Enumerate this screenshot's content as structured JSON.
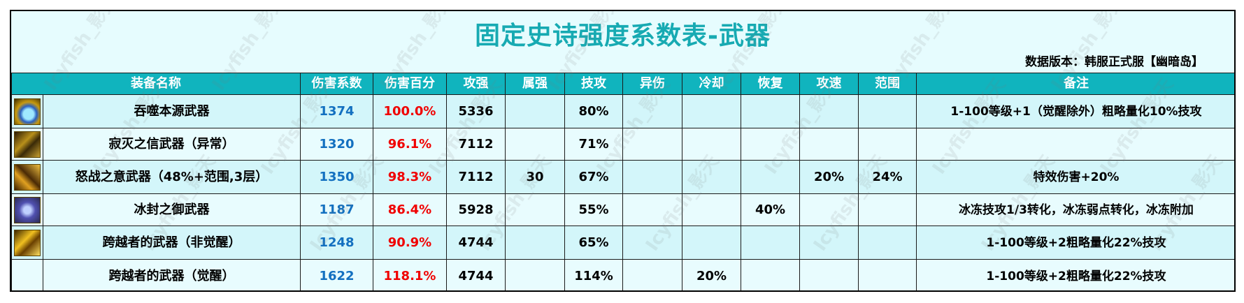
{
  "title": "固定史诗强度系数表-武器",
  "version": "数据版本：韩服正式服【幽暗岛】",
  "watermark": "Icyfish_影天",
  "colors": {
    "header_bg": "#10b4be",
    "title": "#17aab2",
    "coef": "#1370c0",
    "percent": "#f00000"
  },
  "headers": [
    "装备名称",
    "伤害系数",
    "伤害百分",
    "攻强",
    "属强",
    "技攻",
    "异伤",
    "冷却",
    "恢复",
    "攻速",
    "范围",
    "备注"
  ],
  "rows": [
    {
      "icon": "weapon-icon-devour",
      "name": "吞噬本源武器",
      "coef": "1374",
      "pct": "100.0%",
      "atk": "5336",
      "elem": "",
      "skill": "80%",
      "abn": "",
      "cd": "",
      "rec": "",
      "spd": "",
      "range": "",
      "note": "1-100等级+1（觉醒除外）粗略量化10%技攻"
    },
    {
      "icon": "weapon-icon-silence",
      "name": "寂灭之信武器（异常）",
      "coef": "1320",
      "pct": "96.1%",
      "atk": "7112",
      "elem": "",
      "skill": "71%",
      "abn": "",
      "cd": "",
      "rec": "",
      "spd": "",
      "range": "",
      "note": ""
    },
    {
      "icon": "weapon-icon-wrath",
      "name": "怒战之意武器（48%+范围,3层）",
      "coef": "1350",
      "pct": "98.3%",
      "atk": "7112",
      "elem": "30",
      "skill": "67%",
      "abn": "",
      "cd": "",
      "rec": "",
      "spd": "20%",
      "range": "24%",
      "note": "特效伤害+20%"
    },
    {
      "icon": "weapon-icon-frost",
      "name": "冰封之御武器",
      "coef": "1187",
      "pct": "86.4%",
      "atk": "5928",
      "elem": "",
      "skill": "55%",
      "abn": "",
      "cd": "",
      "rec": "40%",
      "spd": "",
      "range": "",
      "note": "冰冻技攻1/3转化，冰冻弱点转化，冰冻附加"
    },
    {
      "icon": "weapon-icon-transcend",
      "name": "跨越者的武器（非觉醒）",
      "coef": "1248",
      "pct": "90.9%",
      "atk": "4744",
      "elem": "",
      "skill": "65%",
      "abn": "",
      "cd": "",
      "rec": "",
      "spd": "",
      "range": "",
      "note": "1-100等级+2粗略量化22%技攻"
    },
    {
      "icon": "",
      "name": "跨越者的武器（觉醒）",
      "coef": "1622",
      "pct": "118.1%",
      "atk": "4744",
      "elem": "",
      "skill": "114%",
      "abn": "",
      "cd": "20%",
      "rec": "",
      "spd": "",
      "range": "",
      "note": "1-100等级+2粗略量化22%技攻"
    }
  ]
}
